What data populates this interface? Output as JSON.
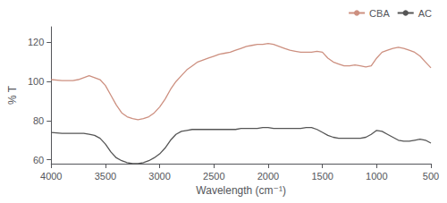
{
  "chart_data": {
    "type": "line",
    "xlabel": "Wavelength (cm⁻¹)",
    "ylabel": "% T",
    "xlim": [
      4000,
      500
    ],
    "ylim": [
      58,
      128
    ],
    "xticks": [
      4000,
      3500,
      3000,
      2500,
      2000,
      1500,
      1000,
      500
    ],
    "yticks": [
      60,
      80,
      100,
      120
    ],
    "grid": false,
    "legend": "upper right",
    "x": [
      4000,
      3900,
      3800,
      3750,
      3700,
      3650,
      3600,
      3550,
      3500,
      3450,
      3400,
      3350,
      3300,
      3250,
      3200,
      3150,
      3100,
      3050,
      3000,
      2950,
      2900,
      2850,
      2800,
      2750,
      2700,
      2650,
      2600,
      2550,
      2500,
      2450,
      2400,
      2350,
      2300,
      2250,
      2200,
      2150,
      2100,
      2050,
      2000,
      1950,
      1900,
      1850,
      1800,
      1750,
      1700,
      1650,
      1600,
      1550,
      1500,
      1450,
      1400,
      1350,
      1300,
      1250,
      1200,
      1150,
      1100,
      1050,
      1000,
      950,
      900,
      850,
      800,
      750,
      700,
      650,
      600,
      550,
      500
    ],
    "series": [
      {
        "name": "CBA",
        "color": "#cd9080",
        "values": [
          101,
          100.5,
          100.5,
          101,
          102,
          103,
          102,
          101,
          98,
          93,
          88,
          84,
          82,
          81,
          80.5,
          81,
          82,
          84,
          87,
          91,
          96,
          100,
          103,
          106,
          108,
          110,
          111,
          112,
          113,
          114,
          114.5,
          115,
          116,
          117,
          118,
          118.5,
          119,
          119,
          119.5,
          119,
          118,
          117,
          116,
          115.5,
          115,
          115,
          115,
          115.5,
          115,
          112,
          110,
          109,
          108,
          108,
          108.5,
          108,
          107.5,
          108,
          112,
          115,
          116,
          117,
          117.5,
          117,
          116,
          115,
          113,
          110,
          107
        ]
      },
      {
        "name": "AC",
        "color": "#555555",
        "values": [
          74,
          73.5,
          73.5,
          73.5,
          73.5,
          73,
          72.5,
          71,
          68,
          64,
          61,
          59.5,
          58.5,
          58,
          58,
          58.5,
          59.5,
          61,
          63,
          66,
          70,
          73,
          74.5,
          75,
          75.5,
          75.5,
          75.5,
          75.5,
          75.5,
          75.5,
          75.5,
          75.5,
          75.5,
          76,
          76,
          76,
          76,
          76.5,
          76.5,
          76,
          76,
          76,
          76,
          76,
          76,
          76.5,
          76.5,
          75.5,
          74,
          72.5,
          71.5,
          71,
          71,
          71,
          71,
          71,
          71.5,
          73,
          75,
          74.5,
          73,
          71.5,
          70,
          69.5,
          69.5,
          70,
          70.5,
          70,
          68.5
        ]
      }
    ]
  }
}
